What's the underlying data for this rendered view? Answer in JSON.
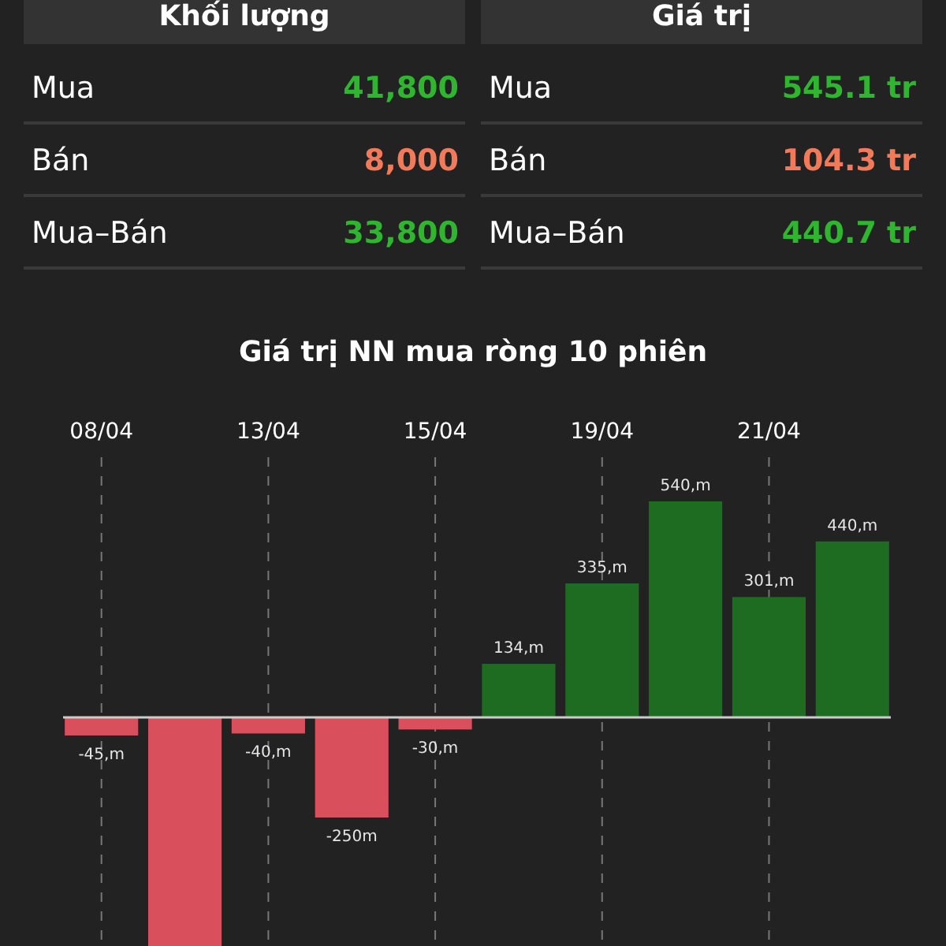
{
  "chart_data": [
    {
      "type": "other",
      "categories": [
        "Mua",
        "Bán",
        "Mua–Bán"
      ],
      "series": [
        {
          "name": "Khối lượng",
          "values": [
            41800,
            8000,
            33800
          ],
          "value_labels": [
            "41,800",
            "8,000",
            "33,800"
          ],
          "colors": [
            "#2fb52f",
            "#f07a5a",
            "#2fb52f"
          ]
        },
        {
          "name": "Giá trị",
          "values": [
            545.1,
            104.3,
            440.7
          ],
          "value_labels": [
            "545.1 tr",
            "104.3 tr",
            "440.7 tr"
          ],
          "colors": [
            "#2fb52f",
            "#f07a5a",
            "#2fb52f"
          ]
        }
      ]
    },
    {
      "type": "bar",
      "title": "Giá trị NN mua ròng 10 phiên",
      "categories": [
        "08/04",
        null,
        "13/04",
        null,
        "15/04",
        null,
        "19/04",
        null,
        "21/04",
        null
      ],
      "values": [
        -45,
        -575,
        -40,
        -250,
        -30,
        134,
        335,
        540,
        301,
        440
      ],
      "value_labels": [
        "-45,m",
        null,
        "-40,m",
        "-250m",
        "-30,m",
        "134,m",
        "335,m",
        "540,m",
        "301,m",
        "440,m"
      ],
      "colors": [
        "#d94f5c",
        "#d94f5c",
        "#d94f5c",
        "#d94f5c",
        "#d94f5c",
        "#1e6b22",
        "#1e6b22",
        "#1e6b22",
        "#1e6b22",
        "#1e6b22"
      ],
      "tick_labels": "x",
      "grid": "x"
    }
  ]
}
